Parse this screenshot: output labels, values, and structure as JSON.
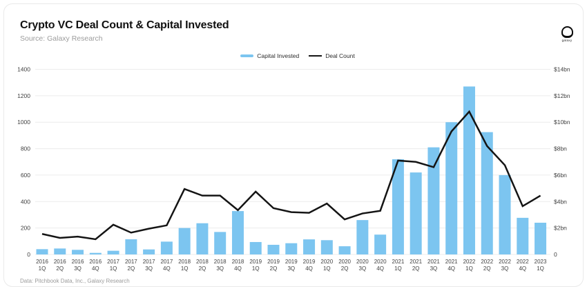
{
  "header": {
    "title": "Crypto VC Deal Count & Capital Invested",
    "subtitle": "Source: Galaxy Research",
    "logo_text": "galaxy"
  },
  "legend": [
    {
      "label": "Capital Invested",
      "color": "#7CC5F0"
    },
    {
      "label": "Deal Count",
      "color": "#141414"
    }
  ],
  "footer": {
    "note": "Data: Pitchbook Data, Inc., Galaxy Research"
  },
  "chart_data": {
    "type": "bar+line combo",
    "categories": [
      "2016 1Q",
      "2016 2Q",
      "2016 3Q",
      "2016 4Q",
      "2017 1Q",
      "2017 2Q",
      "2017 3Q",
      "2017 4Q",
      "2018 1Q",
      "2018 2Q",
      "2018 3Q",
      "2018 4Q",
      "2019 1Q",
      "2019 2Q",
      "2019 3Q",
      "2019 4Q",
      "2020 1Q",
      "2020 2Q",
      "2020 3Q",
      "2020 4Q",
      "2021 1Q",
      "2021 2Q",
      "2021 3Q",
      "2021 4Q",
      "2022 1Q",
      "2022 2Q",
      "2022 3Q",
      "2022 4Q",
      "2023 1Q"
    ],
    "series": [
      {
        "name": "Capital Invested",
        "type": "bar",
        "axis": "right",
        "unit": "$bn",
        "color": "#7CC5F0",
        "values": [
          0.4,
          0.45,
          0.35,
          0.12,
          0.28,
          1.15,
          0.38,
          0.97,
          2.0,
          2.36,
          1.7,
          3.28,
          0.94,
          0.73,
          0.85,
          1.14,
          1.08,
          0.62,
          2.6,
          1.5,
          7.2,
          6.2,
          8.1,
          10.0,
          12.7,
          9.25,
          6.0,
          2.77,
          2.4
        ]
      },
      {
        "name": "Deal Count",
        "type": "line",
        "axis": "left",
        "color": "#141414",
        "values": [
          155,
          125,
          135,
          115,
          225,
          165,
          195,
          220,
          495,
          445,
          445,
          335,
          475,
          350,
          320,
          315,
          385,
          265,
          310,
          330,
          710,
          700,
          660,
          930,
          1080,
          820,
          675,
          365,
          445
        ]
      }
    ],
    "left_axis": {
      "min": 0,
      "max": 1400,
      "step": 200,
      "ticks": [
        "0",
        "200",
        "400",
        "600",
        "800",
        "1000",
        "1200",
        "1400"
      ]
    },
    "right_axis": {
      "min": 0,
      "max": 14,
      "step": 2,
      "ticks": [
        "0",
        "$2bn",
        "$4bn",
        "$6bn",
        "$8bn",
        "$10bn",
        "$12bn",
        "$14bn"
      ]
    },
    "grid": true,
    "legend_position": "top-center",
    "grid_color": "#ececec",
    "tick_color": "#3f3f3f"
  }
}
